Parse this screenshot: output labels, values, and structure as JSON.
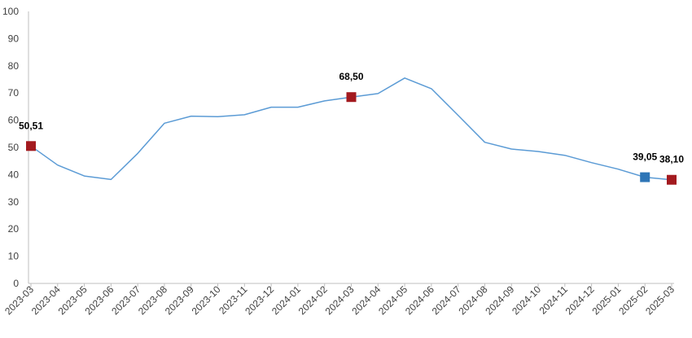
{
  "chart_data": {
    "type": "line",
    "title": "",
    "xlabel": "",
    "ylabel": "",
    "ylim": [
      0,
      100
    ],
    "yticks": [
      "0",
      "10",
      "20",
      "30",
      "40",
      "50",
      "60",
      "70",
      "80",
      "90",
      "100"
    ],
    "grid": false,
    "legend": "none",
    "categories": [
      "2023-03",
      "2023-04",
      "2023-05",
      "2023-06",
      "2023-07",
      "2023-08",
      "2023-09",
      "2023-10",
      "2023-11",
      "2023-12",
      "2024-01",
      "2024-02",
      "2024-03",
      "2024-04",
      "2024-05",
      "2024-06",
      "2024-07",
      "2024-08",
      "2024-09",
      "2024-10",
      "2024-11",
      "2024-12",
      "2025-01",
      "2025-02",
      "2025-03"
    ],
    "series": [
      {
        "values": [
          50.51,
          43.5,
          39.5,
          38.2,
          47.8,
          58.9,
          61.5,
          61.3,
          62,
          64.8,
          64.8,
          67.1,
          68.5,
          69.8,
          75.5,
          71.6,
          61.8,
          51.9,
          49.4,
          48.5,
          47.1,
          44.4,
          42,
          39.05,
          38.1
        ]
      }
    ],
    "highlights": [
      {
        "index": 0,
        "label": "50,51",
        "color": "#a31a1f"
      },
      {
        "index": 12,
        "label": "68,50",
        "color": "#a31a1f"
      },
      {
        "index": 23,
        "label": "39,05",
        "color": "#2e75b6"
      },
      {
        "index": 24,
        "label": "38,10",
        "color": "#a31a1f"
      }
    ],
    "colors": {
      "line": "#5b9bd5",
      "axis": "#bfbfbf",
      "text": "#404040"
    }
  }
}
